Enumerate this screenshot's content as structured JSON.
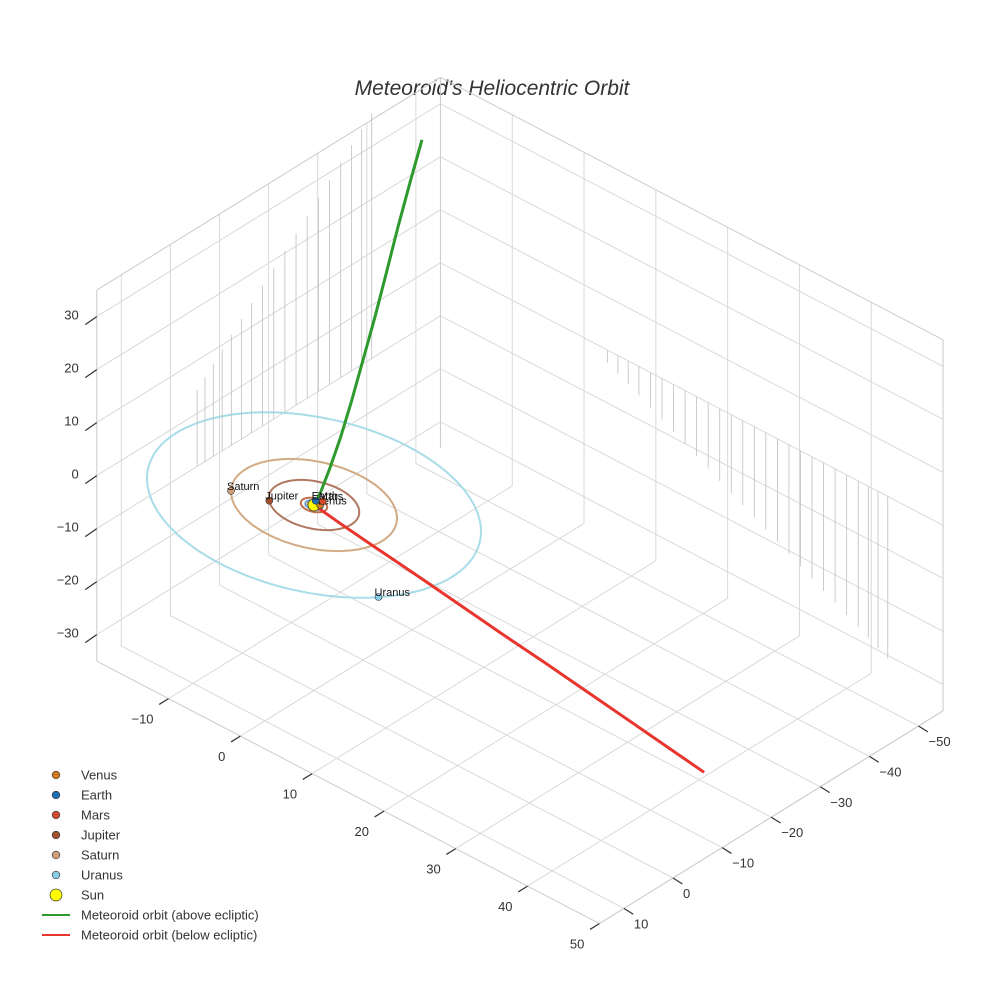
{
  "chart_data": {
    "type": "line3d",
    "title": "Meteoroid's Heliocentric Orbit",
    "axes": {
      "x": {
        "ticks": [
          -10,
          0,
          10,
          20,
          30,
          40,
          50
        ],
        "range": [
          -20,
          50
        ]
      },
      "y": {
        "ticks": [
          -50,
          -40,
          -30,
          -20,
          -10,
          0,
          10
        ],
        "range": [
          -55,
          15
        ]
      },
      "z": {
        "ticks": [
          -30,
          -20,
          -10,
          0,
          10,
          20,
          30
        ],
        "range": [
          -35,
          35
        ]
      }
    },
    "planets": [
      {
        "name": "Venus",
        "color": "#d07a1c",
        "orbit_radius": 0.72,
        "position": [
          0.5,
          -0.52,
          0
        ]
      },
      {
        "name": "Earth",
        "color": "#1f6fb4",
        "orbit_radius": 1.0,
        "position": [
          -0.4,
          -0.92,
          0
        ]
      },
      {
        "name": "Mars",
        "color": "#d24a2a",
        "orbit_radius": 1.52,
        "position": [
          0.2,
          -1.5,
          0
        ]
      },
      {
        "name": "Jupiter",
        "color": "#a0522d",
        "orbit_radius": 5.2,
        "position": [
          -3.9,
          3.4,
          0
        ]
      },
      {
        "name": "Saturn",
        "color": "#d2a07a",
        "orbit_radius": 9.54,
        "position": [
          -8.0,
          5.2,
          0
        ]
      },
      {
        "name": "Uranus",
        "color": "#87cde8",
        "orbit_radius": 19.2,
        "position": [
          16.1,
          10.4,
          0
        ]
      }
    ],
    "orbit_colors": {
      "Venus": "#e3a05c",
      "Earth": "#6aa6d4",
      "Mars": "#c0704f",
      "Jupiter": "#b07860",
      "Saturn": "#d2aa84",
      "Uranus": "#a8dce8"
    },
    "sun": {
      "name": "Sun",
      "color": "#ffff00",
      "position": [
        0,
        0,
        0
      ]
    },
    "meteoroid_above": {
      "name": "Meteoroid orbit (above ecliptic)",
      "color": "#2e9a2e",
      "points": [
        [
          0,
          0,
          0
        ],
        [
          -0.3,
          -1.8,
          1.2
        ],
        [
          -0.9,
          -4.5,
          3.6
        ],
        [
          -1.8,
          -8,
          6.8
        ],
        [
          -3,
          -12,
          10.5
        ],
        [
          -4.5,
          -16.5,
          14.5
        ],
        [
          -6.2,
          -21.5,
          18.8
        ],
        [
          -8,
          -26.5,
          23.2
        ],
        [
          -9.8,
          -31.5,
          27.7
        ],
        [
          -11.5,
          -36.5,
          32.2
        ],
        [
          -13,
          -41,
          36.2
        ]
      ]
    },
    "meteoroid_below": {
      "name": "Meteoroid orbit (below ecliptic)",
      "color": "#e8352e",
      "points": [
        [
          0,
          0,
          0
        ],
        [
          3,
          -1.2,
          -2.2
        ],
        [
          7,
          -2.8,
          -5
        ],
        [
          11.5,
          -4.7,
          -8.2
        ],
        [
          16,
          -6.6,
          -11.5
        ],
        [
          20.5,
          -8.5,
          -14.8
        ],
        [
          25,
          -10.4,
          -18
        ],
        [
          29.5,
          -12.3,
          -21.3
        ],
        [
          34,
          -14.2,
          -24.6
        ],
        [
          38.5,
          -16,
          -27.8
        ],
        [
          42.3,
          -17.6,
          -30.6
        ]
      ]
    },
    "legend": [
      {
        "label": "Venus",
        "kind": "marker",
        "color": "#d07a1c"
      },
      {
        "label": "Earth",
        "kind": "marker",
        "color": "#1f6fb4"
      },
      {
        "label": "Mars",
        "kind": "marker",
        "color": "#d24a2a"
      },
      {
        "label": "Jupiter",
        "kind": "marker",
        "color": "#a0522d"
      },
      {
        "label": "Saturn",
        "kind": "marker",
        "color": "#d2a07a"
      },
      {
        "label": "Uranus",
        "kind": "marker",
        "color": "#87cde8"
      },
      {
        "label": "Sun",
        "kind": "big-marker",
        "color": "#ffff00"
      },
      {
        "label": "Meteoroid orbit (above ecliptic)",
        "kind": "line",
        "color": "#2e9a2e"
      },
      {
        "label": "Meteoroid orbit (below ecliptic)",
        "kind": "line",
        "color": "#e8352e"
      }
    ],
    "legend_position": "bottom-left",
    "grid": true
  }
}
